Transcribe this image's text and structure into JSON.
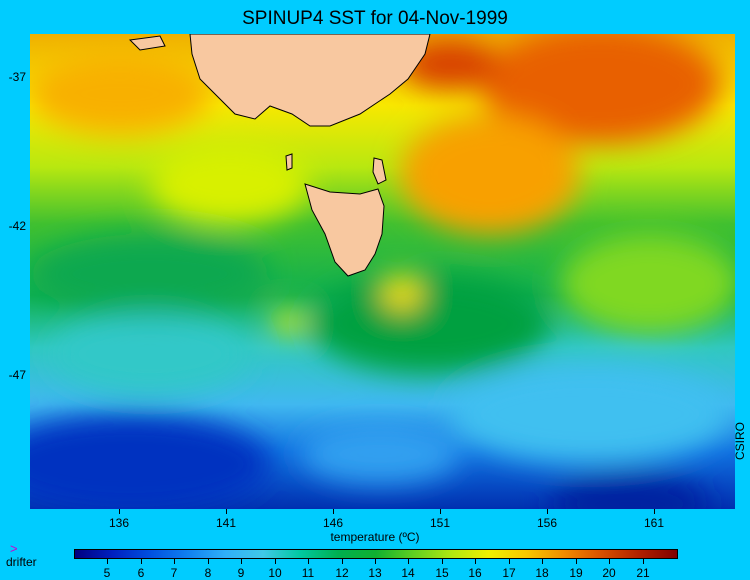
{
  "title": "SPINUP4 SST for 04-Nov-1999",
  "y_axis": {
    "ticks": [
      {
        "value": -37,
        "label": "-37"
      },
      {
        "value": -42,
        "label": "-42"
      },
      {
        "value": -47,
        "label": "-47"
      }
    ]
  },
  "x_axis": {
    "ticks": [
      {
        "value": 136,
        "label": "136"
      },
      {
        "value": 141,
        "label": "141"
      },
      {
        "value": 146,
        "label": "146"
      },
      {
        "value": 151,
        "label": "151"
      },
      {
        "value": 156,
        "label": "156"
      },
      {
        "value": 161,
        "label": "161"
      }
    ]
  },
  "colorbar": {
    "label": "temperature (ºC)",
    "range": [
      4,
      22
    ],
    "ticks": [
      "5",
      "6",
      "7",
      "8",
      "9",
      "10",
      "11",
      "12",
      "13",
      "14",
      "15",
      "16",
      "17",
      "18",
      "19",
      "20",
      "21"
    ],
    "colors": [
      "#000080",
      "#0020c0",
      "#0050e0",
      "#1080f0",
      "#30b0f8",
      "#40c8e8",
      "#00c8a0",
      "#00b050",
      "#10b030",
      "#60d020",
      "#b0e810",
      "#f0f000",
      "#f8c800",
      "#f08c00",
      "#d85000",
      "#b02000",
      "#800000"
    ]
  },
  "legend": {
    "drifter_marker": ">",
    "drifter_label": "drifter"
  },
  "credit": "CSIRO",
  "colors": {
    "background": "#00ccff",
    "land": "#f8c8a0",
    "coastline": "#000000"
  }
}
